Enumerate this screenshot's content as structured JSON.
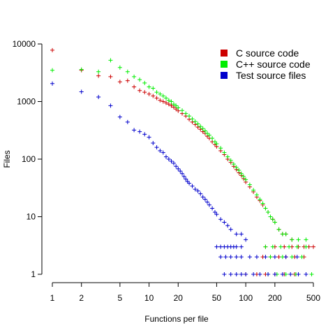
{
  "chart_data": {
    "type": "scatter",
    "title": "",
    "xlabel": "Functions per file",
    "ylabel": "Files",
    "x_scale": "log",
    "y_scale": "log",
    "xlim": [
      1,
      500
    ],
    "ylim": [
      1,
      10000
    ],
    "x_ticks": [
      1,
      2,
      5,
      10,
      20,
      50,
      100,
      200,
      500
    ],
    "x_tick_labels": [
      "1",
      "2",
      "5",
      "10",
      "20",
      "50",
      "100",
      "200",
      "500"
    ],
    "y_ticks": [
      1,
      10,
      100,
      1000,
      10000
    ],
    "y_tick_labels": [
      "1",
      "10",
      "100",
      "1000",
      "10000"
    ],
    "grid": false,
    "legend_position": "top-right",
    "marker": "+",
    "series": [
      {
        "name": "C source code",
        "color": "#cc0000",
        "points": [
          [
            1,
            7800
          ],
          [
            2,
            3500
          ],
          [
            3,
            2800
          ],
          [
            4,
            2700
          ],
          [
            5,
            2200
          ],
          [
            6,
            2300
          ],
          [
            7,
            1800
          ],
          [
            8,
            1550
          ],
          [
            9,
            1450
          ],
          [
            10,
            1350
          ],
          [
            11,
            1250
          ],
          [
            12,
            1150
          ],
          [
            13,
            1050
          ],
          [
            14,
            1000
          ],
          [
            15,
            950
          ],
          [
            16,
            900
          ],
          [
            17,
            850
          ],
          [
            18,
            800
          ],
          [
            19,
            740
          ],
          [
            20,
            690
          ],
          [
            22,
            620
          ],
          [
            24,
            560
          ],
          [
            26,
            490
          ],
          [
            28,
            440
          ],
          [
            30,
            400
          ],
          [
            32,
            360
          ],
          [
            34,
            330
          ],
          [
            36,
            300
          ],
          [
            38,
            280
          ],
          [
            40,
            250
          ],
          [
            42,
            230
          ],
          [
            45,
            200
          ],
          [
            48,
            180
          ],
          [
            50,
            165
          ],
          [
            55,
            140
          ],
          [
            60,
            120
          ],
          [
            65,
            100
          ],
          [
            70,
            88
          ],
          [
            75,
            75
          ],
          [
            80,
            66
          ],
          [
            85,
            58
          ],
          [
            90,
            52
          ],
          [
            95,
            46
          ],
          [
            100,
            40
          ],
          [
            110,
            33
          ],
          [
            120,
            27
          ],
          [
            130,
            22
          ],
          [
            140,
            19
          ],
          [
            150,
            16
          ],
          [
            160,
            14
          ],
          [
            170,
            12
          ],
          [
            180,
            10
          ],
          [
            190,
            9
          ],
          [
            200,
            8
          ],
          [
            220,
            6
          ],
          [
            240,
            5
          ],
          [
            260,
            5
          ],
          [
            300,
            4
          ],
          [
            350,
            3
          ],
          [
            400,
            3
          ],
          [
            500,
            3
          ],
          [
            160,
            3
          ],
          [
            200,
            3
          ],
          [
            250,
            3
          ],
          [
            300,
            3
          ],
          [
            450,
            3
          ],
          [
            150,
            2
          ],
          [
            180,
            2
          ],
          [
            220,
            2
          ],
          [
            260,
            2
          ],
          [
            320,
            2
          ],
          [
            400,
            2
          ],
          [
            100,
            1
          ],
          [
            130,
            1
          ],
          [
            160,
            1
          ],
          [
            200,
            1
          ],
          [
            250,
            1
          ],
          [
            320,
            1
          ],
          [
            420,
            1
          ]
        ]
      },
      {
        "name": "C++ source code",
        "color": "#00ee00",
        "points": [
          [
            1,
            3500
          ],
          [
            2,
            3600
          ],
          [
            3,
            3300
          ],
          [
            4,
            5200
          ],
          [
            5,
            3900
          ],
          [
            6,
            3300
          ],
          [
            7,
            2700
          ],
          [
            8,
            2400
          ],
          [
            9,
            2100
          ],
          [
            10,
            1800
          ],
          [
            11,
            1700
          ],
          [
            12,
            1450
          ],
          [
            13,
            1350
          ],
          [
            14,
            1250
          ],
          [
            15,
            1150
          ],
          [
            16,
            1050
          ],
          [
            17,
            1000
          ],
          [
            18,
            900
          ],
          [
            19,
            850
          ],
          [
            20,
            780
          ],
          [
            22,
            700
          ],
          [
            24,
            620
          ],
          [
            26,
            560
          ],
          [
            28,
            500
          ],
          [
            30,
            450
          ],
          [
            32,
            410
          ],
          [
            34,
            370
          ],
          [
            36,
            340
          ],
          [
            38,
            310
          ],
          [
            40,
            280
          ],
          [
            42,
            260
          ],
          [
            45,
            230
          ],
          [
            48,
            200
          ],
          [
            50,
            185
          ],
          [
            55,
            155
          ],
          [
            60,
            130
          ],
          [
            65,
            110
          ],
          [
            70,
            95
          ],
          [
            75,
            82
          ],
          [
            80,
            72
          ],
          [
            85,
            64
          ],
          [
            90,
            56
          ],
          [
            95,
            50
          ],
          [
            100,
            44
          ],
          [
            110,
            36
          ],
          [
            120,
            29
          ],
          [
            130,
            24
          ],
          [
            140,
            20
          ],
          [
            150,
            17
          ],
          [
            160,
            14
          ],
          [
            170,
            12
          ],
          [
            180,
            10
          ],
          [
            190,
            9
          ],
          [
            200,
            8
          ],
          [
            220,
            6
          ],
          [
            240,
            5
          ],
          [
            260,
            5
          ],
          [
            300,
            4
          ],
          [
            350,
            4
          ],
          [
            420,
            4
          ],
          [
            160,
            3
          ],
          [
            190,
            3
          ],
          [
            230,
            3
          ],
          [
            280,
            3
          ],
          [
            340,
            3
          ],
          [
            420,
            3
          ],
          [
            180,
            2
          ],
          [
            240,
            2
          ],
          [
            300,
            2
          ],
          [
            380,
            2
          ],
          [
            170,
            1
          ],
          [
            210,
            1
          ],
          [
            260,
            1
          ],
          [
            330,
            1
          ],
          [
            480,
            1
          ]
        ]
      },
      {
        "name": "Test source files",
        "color": "#0000cc",
        "points": [
          [
            1,
            2050
          ],
          [
            2,
            1480
          ],
          [
            3,
            1200
          ],
          [
            4,
            850
          ],
          [
            5,
            540
          ],
          [
            6,
            440
          ],
          [
            7,
            320
          ],
          [
            8,
            300
          ],
          [
            9,
            270
          ],
          [
            10,
            240
          ],
          [
            11,
            190
          ],
          [
            12,
            160
          ],
          [
            13,
            140
          ],
          [
            14,
            130
          ],
          [
            15,
            110
          ],
          [
            16,
            100
          ],
          [
            17,
            92
          ],
          [
            18,
            85
          ],
          [
            19,
            75
          ],
          [
            20,
            68
          ],
          [
            21,
            62
          ],
          [
            22,
            56
          ],
          [
            23,
            50
          ],
          [
            24,
            45
          ],
          [
            25,
            41
          ],
          [
            26,
            38
          ],
          [
            28,
            34
          ],
          [
            30,
            30
          ],
          [
            32,
            28
          ],
          [
            34,
            25
          ],
          [
            36,
            22
          ],
          [
            38,
            20
          ],
          [
            40,
            18
          ],
          [
            42,
            16
          ],
          [
            45,
            14
          ],
          [
            48,
            12
          ],
          [
            50,
            11
          ],
          [
            55,
            9
          ],
          [
            60,
            8
          ],
          [
            65,
            7
          ],
          [
            70,
            6
          ],
          [
            80,
            5
          ],
          [
            90,
            5
          ],
          [
            100,
            4
          ],
          [
            50,
            3
          ],
          [
            55,
            3
          ],
          [
            60,
            3
          ],
          [
            65,
            3
          ],
          [
            70,
            3
          ],
          [
            75,
            3
          ],
          [
            80,
            3
          ],
          [
            90,
            3
          ],
          [
            55,
            2
          ],
          [
            62,
            2
          ],
          [
            70,
            2
          ],
          [
            80,
            2
          ],
          [
            90,
            2
          ],
          [
            110,
            2
          ],
          [
            130,
            2
          ],
          [
            160,
            2
          ],
          [
            200,
            2
          ],
          [
            260,
            2
          ],
          [
            340,
            2
          ],
          [
            60,
            1
          ],
          [
            70,
            1
          ],
          [
            80,
            1
          ],
          [
            90,
            1
          ],
          [
            100,
            1
          ],
          [
            120,
            1
          ],
          [
            140,
            1
          ],
          [
            170,
            1
          ],
          [
            200,
            1
          ],
          [
            240,
            1
          ],
          [
            290,
            1
          ],
          [
            350,
            1
          ],
          [
            420,
            1
          ]
        ]
      }
    ]
  }
}
